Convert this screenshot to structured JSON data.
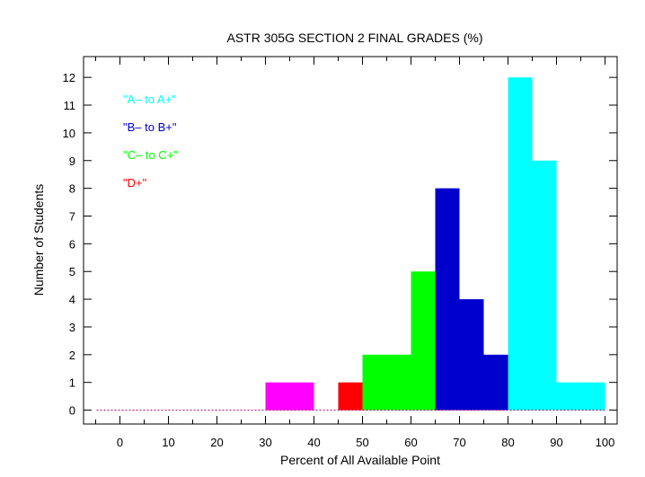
{
  "chart_data": {
    "type": "bar",
    "title": "ASTR 305G SECTION 2 FINAL GRADES (%)",
    "xlabel": "Percent of All Available Point",
    "ylabel": "Number of Students",
    "xlim": [
      -7.5,
      102.5
    ],
    "ylim": [
      -0.5,
      12.75
    ],
    "xticks": [
      0,
      10,
      20,
      30,
      40,
      50,
      60,
      70,
      80,
      90,
      100
    ],
    "yticks": [
      0,
      1,
      2,
      3,
      4,
      5,
      6,
      7,
      8,
      9,
      10,
      11,
      12
    ],
    "grid": false,
    "legend_position": "top-left",
    "legend": [
      {
        "label": "\"A– to A+\"",
        "color": "#00ffff"
      },
      {
        "label": "\"B– to B+\"",
        "color": "#0000cc"
      },
      {
        "label": "\"C– to C+\"",
        "color": "#00ff00"
      },
      {
        "label": "\"D+\"",
        "color": "#ff0000"
      }
    ],
    "baseline": {
      "y": 0,
      "color": "#aa0066",
      "style": "dashed"
    },
    "bars": [
      {
        "x0": 30,
        "x1": 40,
        "value": 1,
        "color": "#ff00ff"
      },
      {
        "x0": 45,
        "x1": 50,
        "value": 1,
        "color": "#ff0000"
      },
      {
        "x0": 50,
        "x1": 60,
        "value": 2,
        "color": "#00ff00"
      },
      {
        "x0": 60,
        "x1": 65,
        "value": 5,
        "color": "#00ff00"
      },
      {
        "x0": 65,
        "x1": 70,
        "value": 8,
        "color": "#0000cc"
      },
      {
        "x0": 70,
        "x1": 75,
        "value": 4,
        "color": "#0000cc"
      },
      {
        "x0": 75,
        "x1": 80,
        "value": 2,
        "color": "#0000cc"
      },
      {
        "x0": 80,
        "x1": 85,
        "value": 12,
        "color": "#00ffff"
      },
      {
        "x0": 85,
        "x1": 90,
        "value": 9,
        "color": "#00ffff"
      },
      {
        "x0": 90,
        "x1": 100,
        "value": 1,
        "color": "#00ffff"
      }
    ]
  }
}
